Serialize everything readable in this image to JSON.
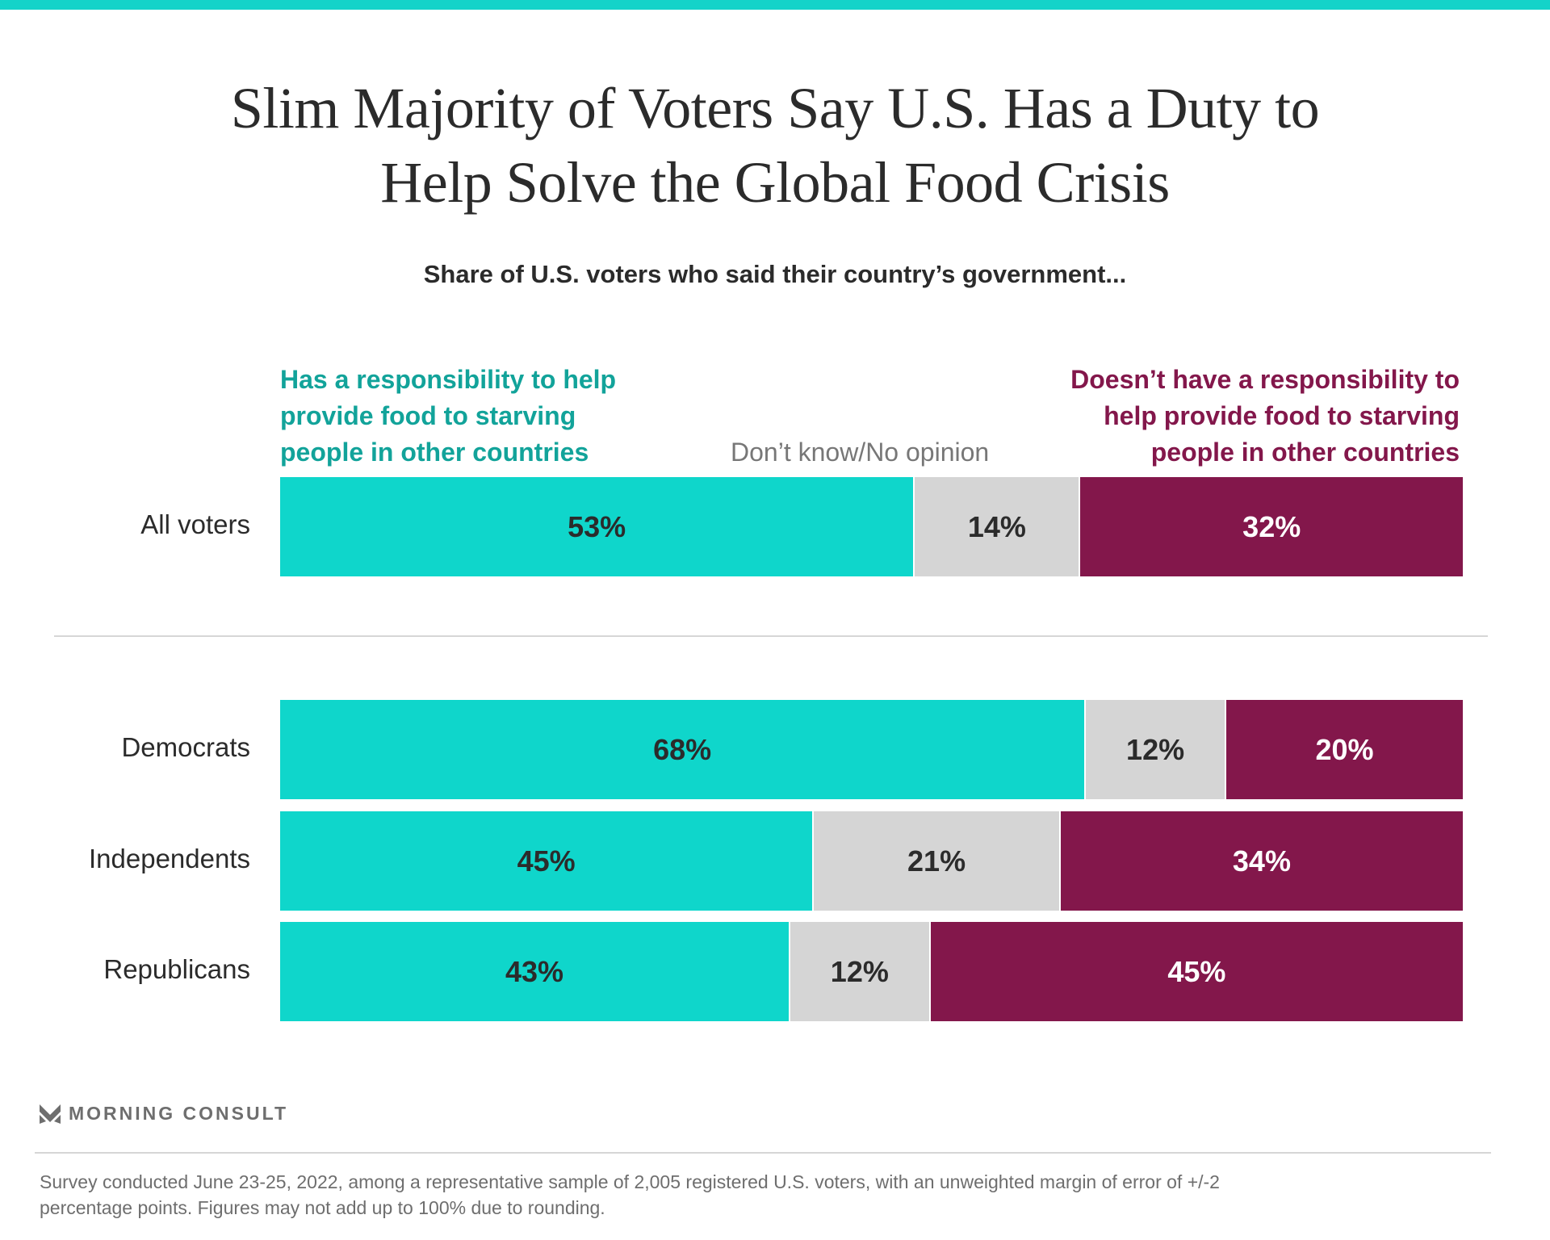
{
  "title_lines": [
    "Slim Majority of Voters Say U.S. Has a Duty to",
    "Help Solve the Global Food Crisis"
  ],
  "subtitle": "Share of U.S. voters who said their country’s government...",
  "colors": {
    "yes": "#0fd6cb",
    "dont_know": "#d5d5d5",
    "no": "#83174b",
    "yes_text": "#12a39a",
    "top_bar": "#14d3c9"
  },
  "legend": {
    "yes": [
      "Has a responsibility to help",
      "provide food to starving",
      "people in other countries"
    ],
    "dont_know": "Don’t know/No opinion",
    "no": [
      "Doesn’t have a responsibility to",
      "help provide food to starving",
      "people in other countries"
    ]
  },
  "chart_data": {
    "type": "bar",
    "orientation": "horizontal-stacked",
    "categories": [
      "All voters",
      "Democrats",
      "Independents",
      "Republicans"
    ],
    "series": [
      {
        "name": "Has a responsibility to help provide food to starving people in other countries",
        "values": [
          53,
          68,
          45,
          43
        ],
        "labels": [
          "53%",
          "68%",
          "45%",
          "43%"
        ]
      },
      {
        "name": "Don’t know/No opinion",
        "values": [
          14,
          12,
          21,
          12
        ],
        "labels": [
          "14%",
          "12%",
          "21%",
          "12%"
        ]
      },
      {
        "name": "Doesn’t have a responsibility to help provide food to starving people in other countries",
        "values": [
          32,
          20,
          34,
          45
        ],
        "labels": [
          "32%",
          "20%",
          "34%",
          "45%"
        ]
      }
    ],
    "xlim": [
      0,
      100
    ],
    "grid": false,
    "legend_position": "top"
  },
  "brand": "MORNING CONSULT",
  "footnote": [
    "Survey conducted June 23-25, 2022, among a representative sample of 2,005 registered U.S. voters, with an unweighted margin of error of +/-2",
    "percentage points. Figures may not add up to 100% due to rounding."
  ]
}
